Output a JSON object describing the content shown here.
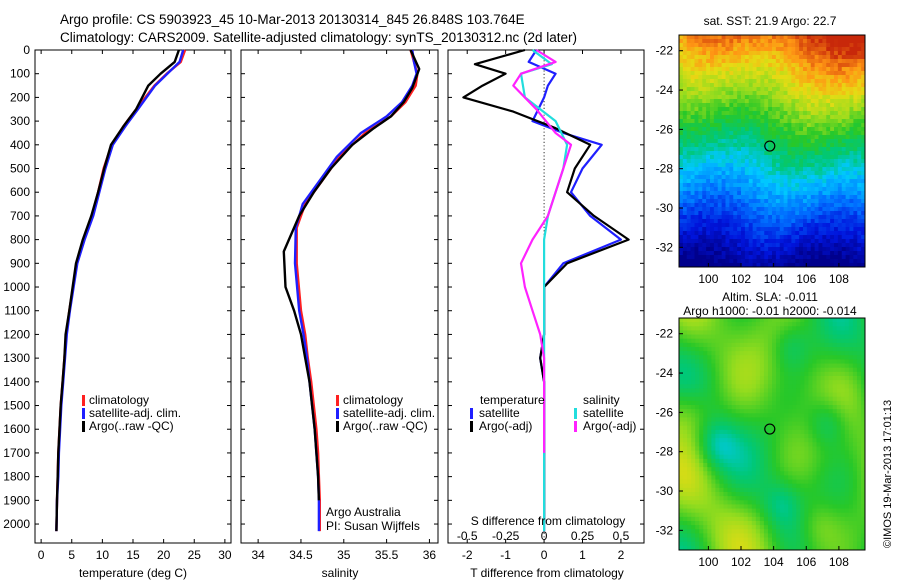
{
  "header": {
    "line1": "Argo profile: CS 5903923_45 10-Mar-2013 20130314_845 26.848S 103.764E",
    "line2": "Climatology: CARS2009. Satellite-adjusted climatology: synTS_20130312.nc (2d later)"
  },
  "colors": {
    "climatology": "#ff2020",
    "satellite": "#1f1fff",
    "argo": "#000000",
    "salinity_satellite": "#22dddd",
    "salinity_argo": "#ff22ff"
  },
  "chart_data": [
    {
      "type": "line",
      "id": "temperature",
      "xlabel": "temperature (deg C)",
      "xlim": [
        -1,
        31
      ],
      "ylim": [
        2080,
        0
      ],
      "x_ticks": [
        0,
        5,
        10,
        15,
        20,
        25,
        30
      ],
      "y_ticks": [
        0,
        100,
        200,
        300,
        400,
        500,
        600,
        700,
        800,
        900,
        1000,
        1100,
        1200,
        1300,
        1400,
        1500,
        1600,
        1700,
        1800,
        1900,
        2000
      ],
      "legend": [
        "climatology",
        "satellite-adj. clim.",
        "Argo(..raw -QC)"
      ],
      "series": [
        {
          "name": "climatology",
          "color": "#ff2020",
          "x": [
            23.5,
            22.8,
            20.5,
            18.5,
            15.5,
            13.5,
            11.5,
            10.2,
            9.3,
            8.3,
            7.0,
            5.8,
            4.6,
            4.1,
            3.8,
            3.5,
            3.2,
            3.0,
            2.8,
            2.7,
            2.6,
            2.5
          ],
          "y": [
            0,
            50,
            100,
            150,
            250,
            320,
            400,
            500,
            600,
            700,
            800,
            900,
            1100,
            1200,
            1300,
            1400,
            1500,
            1600,
            1700,
            1800,
            1900,
            2030
          ]
        },
        {
          "name": "satellite-adj. clim.",
          "color": "#1f1fff",
          "x": [
            23.2,
            22.6,
            20.6,
            18.6,
            15.8,
            13.8,
            11.7,
            10.5,
            9.5,
            8.5,
            7.1,
            5.9,
            4.7,
            4.2,
            3.9,
            3.6,
            3.3,
            3.1,
            2.9,
            2.8,
            2.6,
            2.5
          ],
          "y": [
            0,
            50,
            100,
            150,
            250,
            320,
            400,
            500,
            600,
            700,
            800,
            900,
            1100,
            1200,
            1300,
            1400,
            1500,
            1600,
            1700,
            1800,
            1900,
            2030
          ]
        },
        {
          "name": "Argo(..raw -QC)",
          "color": "#000000",
          "x": [
            22.5,
            21.8,
            19.5,
            17.5,
            15.5,
            13.5,
            11.4,
            10.3,
            9.3,
            8.2,
            6.8,
            5.7,
            4.6,
            4.0,
            3.8,
            3.5,
            3.2,
            3.0,
            2.8,
            2.7,
            2.6,
            2.5
          ],
          "y": [
            0,
            50,
            100,
            150,
            250,
            320,
            400,
            500,
            600,
            700,
            800,
            900,
            1100,
            1200,
            1300,
            1400,
            1500,
            1600,
            1700,
            1800,
            1900,
            2030
          ]
        }
      ]
    },
    {
      "type": "line",
      "id": "salinity",
      "xlabel": "salinity",
      "xlim": [
        33.8,
        36.1
      ],
      "ylim": [
        2080,
        0
      ],
      "x_ticks": [
        34,
        34.5,
        35,
        35.5,
        36
      ],
      "legend": [
        "climatology",
        "satellite-adj. clim.",
        "Argo(..raw -QC)"
      ],
      "annotation": [
        "Argo Australia",
        "PI: Susan Wijffels"
      ],
      "series": [
        {
          "name": "climatology",
          "color": "#ff2020",
          "x": [
            35.78,
            35.82,
            35.86,
            35.84,
            35.72,
            35.55,
            35.25,
            34.95,
            34.75,
            34.55,
            34.45,
            34.45,
            34.5,
            34.55,
            34.58,
            34.62,
            34.65,
            34.68,
            34.7,
            34.71,
            34.72,
            34.72
          ],
          "y": [
            0,
            50,
            100,
            150,
            220,
            280,
            350,
            450,
            550,
            650,
            750,
            900,
            1100,
            1200,
            1300,
            1400,
            1500,
            1600,
            1700,
            1800,
            1900,
            2030
          ]
        },
        {
          "name": "satellite-adj. clim.",
          "color": "#1f1fff",
          "x": [
            35.8,
            35.82,
            35.85,
            35.8,
            35.68,
            35.5,
            35.2,
            34.92,
            34.72,
            34.52,
            34.44,
            34.43,
            34.48,
            34.53,
            34.57,
            34.6,
            34.63,
            34.66,
            34.68,
            34.7,
            34.71,
            34.71
          ],
          "y": [
            0,
            50,
            100,
            150,
            220,
            280,
            350,
            450,
            550,
            650,
            750,
            900,
            1100,
            1200,
            1300,
            1400,
            1500,
            1600,
            1700,
            1800,
            1900,
            2030
          ]
        },
        {
          "name": "Argo(..raw -QC)",
          "color": "#000000",
          "x": [
            35.78,
            35.88,
            35.8,
            35.7,
            35.55,
            35.35,
            35.1,
            34.85,
            34.65,
            34.48,
            34.3,
            34.32,
            34.42,
            34.5,
            34.55,
            34.6,
            34.63,
            34.66,
            34.68,
            34.7,
            34.71
          ],
          "y": [
            0,
            80,
            160,
            220,
            280,
            330,
            400,
            500,
            600,
            700,
            850,
            1000,
            1100,
            1200,
            1300,
            1400,
            1500,
            1600,
            1700,
            1800,
            1900
          ]
        }
      ]
    },
    {
      "type": "line",
      "id": "difference",
      "xlabel": "T difference from climatology",
      "top_label": "S difference from climatology",
      "xlim": [
        -2.5,
        2.6
      ],
      "ylim": [
        2080,
        0
      ],
      "x_ticks": [
        -2,
        -1,
        0,
        1,
        2
      ],
      "x_tick_labels": [
        "-2",
        "-1",
        "0",
        "1",
        "2"
      ],
      "s_ticks": [
        -0.5,
        -0.25,
        0,
        0.25,
        0.5
      ],
      "s_tick_labels": [
        "-0.5",
        "-0.25",
        "0",
        "0.25",
        "0.5"
      ],
      "legend_left_title": "temperature",
      "legend_right_title": "salinity",
      "legend": [
        "satellite",
        "Argo(-adj)",
        "satellite",
        "Argo(-adj)"
      ],
      "series": [
        {
          "name": "satellite",
          "color": "#1f1fff",
          "x": [
            -0.2,
            -0.4,
            0.3,
            0.1,
            0.0,
            -0.3,
            0.5,
            1.5,
            1.0,
            0.7,
            1.2,
            2.0,
            0.5,
            0.0,
            0.0,
            -0.1,
            0.0,
            0.0,
            0.0,
            0.0,
            0.0
          ],
          "y": [
            0,
            50,
            100,
            150,
            200,
            300,
            350,
            400,
            500,
            600,
            700,
            800,
            900,
            1000,
            1200,
            1300,
            1400,
            1600,
            1800,
            2000,
            2030
          ]
        },
        {
          "name": "Argo(-adj)",
          "color": "#000000",
          "x": [
            -0.5,
            -1.8,
            -1.0,
            -1.6,
            -2.1,
            -0.8,
            0.3,
            1.2,
            0.8,
            0.6,
            1.3,
            2.2,
            0.6,
            0.0,
            0.0,
            -0.1,
            0.0,
            0.0,
            0.0,
            0.0
          ],
          "y": [
            0,
            60,
            100,
            150,
            200,
            260,
            330,
            400,
            500,
            600,
            700,
            800,
            900,
            1000,
            1200,
            1300,
            1400,
            1600,
            1800,
            2000
          ]
        },
        {
          "name": "satellite",
          "color": "#22dddd",
          "x": [
            -0.3,
            0.2,
            -0.6,
            -0.5,
            0.3,
            0.6,
            0.5,
            0.3,
            0.1,
            0.0,
            0.0,
            0.0,
            0.0,
            0.0,
            0.0
          ],
          "y": [
            0,
            60,
            100,
            200,
            300,
            400,
            500,
            600,
            700,
            800,
            1000,
            1200,
            1500,
            1800,
            2030
          ]
        },
        {
          "name": "Argo(-adj)",
          "color": "#ff22ff",
          "x": [
            -0.2,
            0.3,
            -0.6,
            -0.8,
            -0.2,
            0.3,
            0.7,
            0.5,
            0.3,
            0.1,
            -0.3,
            -0.6,
            -0.5,
            -0.3,
            -0.1,
            0.0,
            0.0,
            0.0
          ],
          "y": [
            0,
            50,
            100,
            150,
            250,
            350,
            400,
            500,
            600,
            700,
            800,
            900,
            1000,
            1100,
            1200,
            1300,
            1500,
            1700
          ]
        }
      ]
    },
    {
      "type": "heatmap",
      "id": "sst_map",
      "title": "sat. SST: 21.9 Argo: 22.7",
      "xlim": [
        98.2,
        109.6
      ],
      "ylim": [
        -33.0,
        -21.2
      ],
      "x_ticks": [
        100,
        102,
        104,
        106,
        108
      ],
      "y_ticks": [
        -22,
        -24,
        -26,
        -28,
        -30,
        -32
      ],
      "marker": {
        "lon": 103.764,
        "lat": -26.848
      }
    },
    {
      "type": "heatmap",
      "id": "sla_map",
      "title": "Altim. SLA: -0.011",
      "subtitle": "Argo h1000: -0.01 h2000: -0.014",
      "xlim": [
        98.2,
        109.6
      ],
      "ylim": [
        -33.0,
        -21.2
      ],
      "x_ticks": [
        100,
        102,
        104,
        106,
        108
      ],
      "y_ticks": [
        -22,
        -24,
        -26,
        -28,
        -30,
        -32
      ],
      "marker": {
        "lon": 103.764,
        "lat": -26.848
      }
    }
  ],
  "footer": {
    "credit": "©IMOS 19-Mar-2013 17:01:13"
  }
}
